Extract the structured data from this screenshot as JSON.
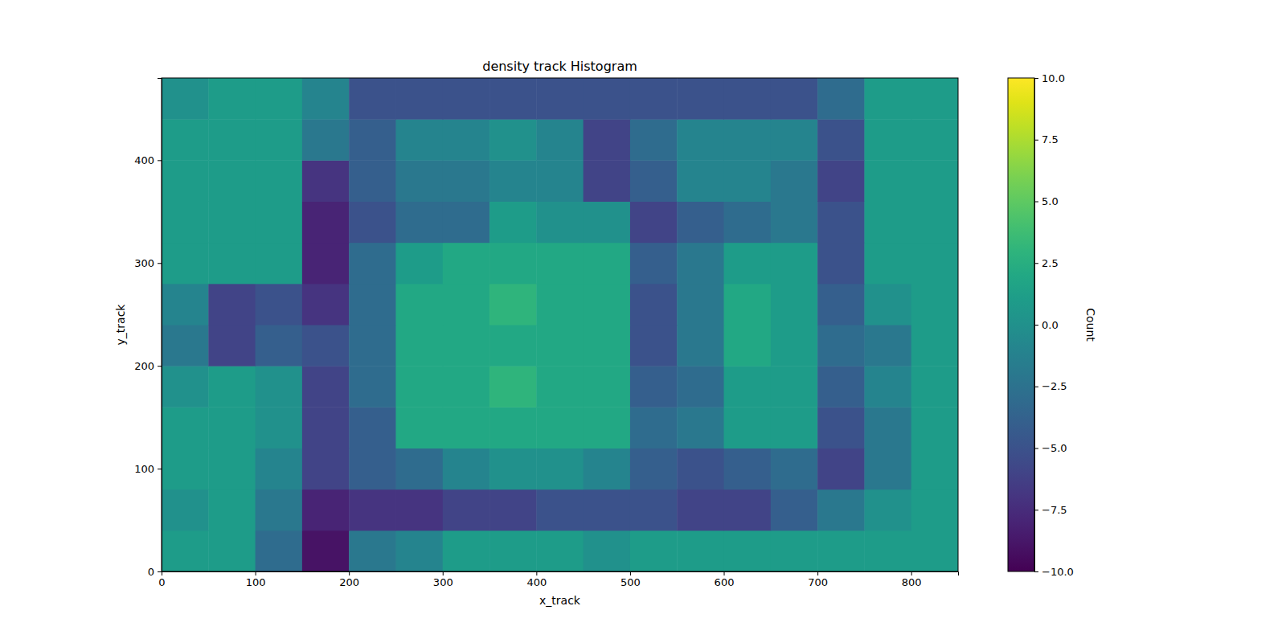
{
  "chart_data": {
    "type": "heatmap",
    "title": "density track Histogram",
    "x_label": "x_track",
    "y_label": "y_track",
    "color_label": "Count",
    "xlim": [
      0,
      850
    ],
    "ylim": [
      0,
      480
    ],
    "xticks": [
      0,
      100,
      200,
      300,
      400,
      500,
      600,
      700,
      800
    ],
    "yticks": [
      0,
      100,
      200,
      300,
      400
    ],
    "x_bins": [
      0,
      50,
      100,
      150,
      200,
      250,
      300,
      350,
      400,
      450,
      500,
      550,
      600,
      650,
      700,
      750,
      800,
      850
    ],
    "y_bins": [
      0,
      40,
      80,
      120,
      160,
      200,
      240,
      280,
      320,
      360,
      400,
      440,
      480
    ],
    "counts": [
      [
        1,
        1,
        -3,
        -9,
        -2,
        -1,
        1,
        1,
        1,
        0,
        1,
        1,
        1,
        1,
        1,
        1,
        1
      ],
      [
        0,
        1,
        -2,
        -8,
        -7,
        -7,
        -6,
        -6,
        -5,
        -5,
        -5,
        -6,
        -6,
        -4,
        -2,
        0,
        1
      ],
      [
        1,
        1,
        -1,
        -6,
        -4,
        -3,
        -1,
        0,
        0,
        -1,
        -4,
        -5,
        -4,
        -3,
        -6,
        -2,
        1
      ],
      [
        1,
        1,
        0,
        -6,
        -4,
        2,
        2,
        2,
        2,
        2,
        -3,
        -2,
        1,
        1,
        -5,
        -2,
        1
      ],
      [
        0,
        1,
        0,
        -6,
        -3,
        2,
        2,
        3,
        2,
        2,
        -4,
        -3,
        1,
        1,
        -4,
        -1,
        1
      ],
      [
        -2,
        -6,
        -4,
        -5,
        -3,
        2,
        2,
        2,
        2,
        2,
        -5,
        -2,
        2,
        1,
        -3,
        -2,
        1
      ],
      [
        -1,
        -6,
        -5,
        -7,
        -3,
        2,
        2,
        3,
        2,
        2,
        -5,
        -2,
        2,
        1,
        -4,
        0,
        1
      ],
      [
        1,
        1,
        1,
        -8,
        -3,
        1,
        2,
        2,
        2,
        2,
        -4,
        -2,
        1,
        1,
        -5,
        1,
        1
      ],
      [
        1,
        1,
        1,
        -8,
        -5,
        -3,
        -3,
        1,
        0,
        0,
        -6,
        -4,
        -3,
        -2,
        -5,
        1,
        1
      ],
      [
        1,
        1,
        1,
        -7,
        -4,
        -2,
        -2,
        -1,
        -1,
        -6,
        -4,
        -1,
        -1,
        -2,
        -6,
        1,
        1
      ],
      [
        1,
        1,
        1,
        -2,
        -4,
        -1,
        -1,
        0,
        -1,
        -6,
        -3,
        -1,
        -1,
        -1,
        -5,
        1,
        1
      ],
      [
        0,
        1,
        1,
        -1,
        -5,
        -5,
        -5,
        -5,
        -5,
        -5,
        -5,
        -5,
        -5,
        -5,
        -3,
        1,
        1
      ]
    ],
    "color_range": [
      -10,
      10
    ],
    "color_ticks": [
      {
        "value": -10,
        "label": "−10.0"
      },
      {
        "value": -7.5,
        "label": "−7.5"
      },
      {
        "value": -5,
        "label": "−5.0"
      },
      {
        "value": -2.5,
        "label": "−2.5"
      },
      {
        "value": 0,
        "label": "0.0"
      },
      {
        "value": 2.5,
        "label": "2.5"
      },
      {
        "value": 5,
        "label": "5.0"
      },
      {
        "value": 7.5,
        "label": "7.5"
      },
      {
        "value": 10,
        "label": "10.0"
      }
    ]
  }
}
